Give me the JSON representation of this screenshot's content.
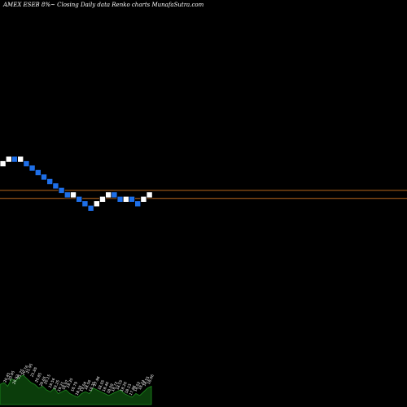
{
  "chart_data": {
    "type": "renko",
    "title": "AMEX  ESEB 8%~   Closing Daily data  Renko  charts MunafaSutra.com",
    "colors": {
      "up_brick": "#ffffff",
      "down_brick": "#1e6fe8",
      "brick_border": "#000000",
      "level_line": "#b5651d",
      "volume_fill": "#0b3d0b",
      "volume_line": "#1f8c1f",
      "label_text": "#ffffff"
    },
    "bricks": [
      {
        "dir": "up",
        "level": 14
      },
      {
        "dir": "up",
        "level": 15
      },
      {
        "dir": "down",
        "level": 15
      },
      {
        "dir": "up",
        "level": 15
      },
      {
        "dir": "down",
        "level": 14
      },
      {
        "dir": "down",
        "level": 13
      },
      {
        "dir": "down",
        "level": 12
      },
      {
        "dir": "down",
        "level": 11
      },
      {
        "dir": "down",
        "level": 10
      },
      {
        "dir": "down",
        "level": 9
      },
      {
        "dir": "down",
        "level": 8
      },
      {
        "dir": "down",
        "level": 7
      },
      {
        "dir": "up",
        "level": 7
      },
      {
        "dir": "down",
        "level": 6
      },
      {
        "dir": "down",
        "level": 5
      },
      {
        "dir": "down",
        "level": 4
      },
      {
        "dir": "up",
        "level": 5
      },
      {
        "dir": "up",
        "level": 6
      },
      {
        "dir": "up",
        "level": 7
      },
      {
        "dir": "down",
        "level": 7
      },
      {
        "dir": "down",
        "level": 6
      },
      {
        "dir": "up",
        "level": 6
      },
      {
        "dir": "down",
        "level": 6
      },
      {
        "dir": "down",
        "level": 5
      },
      {
        "dir": "up",
        "level": 6
      },
      {
        "dir": "up",
        "level": 7
      }
    ],
    "level_lines": [
      8,
      6.2
    ],
    "volume": [
      0.55,
      0.6,
      0.5,
      0.7,
      0.65,
      0.75,
      0.8,
      0.7,
      0.6,
      0.55,
      0.45,
      0.5,
      0.4,
      0.35,
      0.45,
      0.3,
      0.35,
      0.4,
      0.3,
      0.25,
      0.2,
      0.3,
      0.35,
      0.3,
      0.45,
      0.4,
      0.35,
      0.3,
      0.25,
      0.3,
      0.35,
      0.4,
      0.3,
      0.25,
      0.2,
      0.3,
      0.25,
      0.35,
      0.45,
      0.5
    ],
    "volume_labels": [
      "20.45",
      "20.95",
      "20.92",
      "21.75",
      "20.76",
      "21.95",
      "21.85",
      "20.85",
      "20.65",
      "20.15",
      "19.56",
      "19.25",
      "19.21",
      "18.97",
      "19.35",
      "18.79",
      "18.55",
      "19.04",
      "18.56",
      "18.25",
      "17.96",
      "18.05",
      "18.46",
      "18.09",
      "18.72",
      "18.55",
      "18.26",
      "18.15",
      "17.96",
      "18.02",
      "18.24",
      "18.55",
      "18.06"
    ]
  }
}
